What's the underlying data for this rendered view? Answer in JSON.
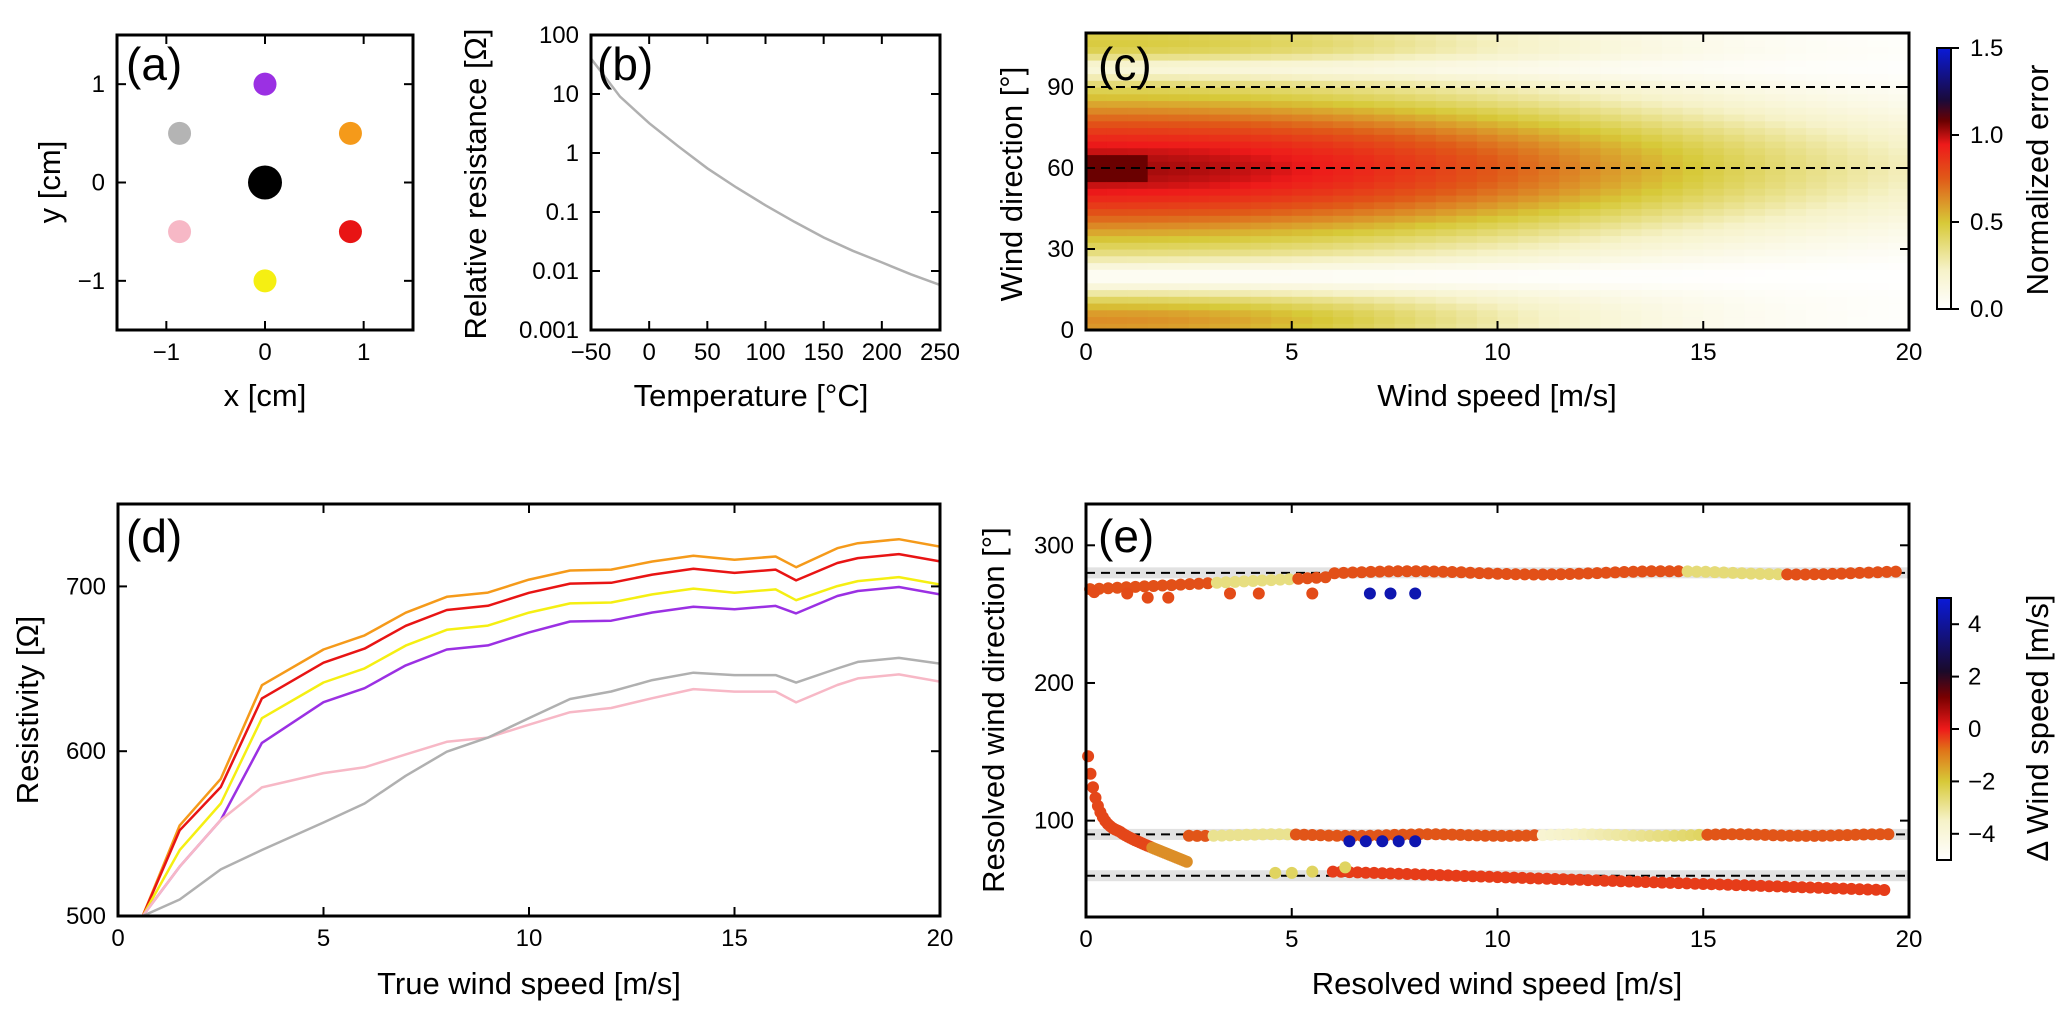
{
  "chart_data": [
    {
      "id": "a",
      "type": "scatter",
      "panel_label": "(a)",
      "xlabel": "x [cm]",
      "ylabel": "y [cm]",
      "xlim": [
        -1.5,
        1.5
      ],
      "ylim": [
        -1.5,
        1.5
      ],
      "xticks": [
        -1,
        0,
        1
      ],
      "yticks": [
        -1,
        0,
        1
      ],
      "points": [
        {
          "x": 0,
          "y": 1,
          "color": "#9b30e3",
          "size": "small"
        },
        {
          "x": -0.866,
          "y": 0.5,
          "color": "#b4b4b4",
          "size": "small"
        },
        {
          "x": 0.866,
          "y": 0.5,
          "color": "#f59a1a",
          "size": "small"
        },
        {
          "x": 0,
          "y": 0,
          "color": "#000000",
          "size": "large"
        },
        {
          "x": -0.866,
          "y": -0.5,
          "color": "#f7b8c6",
          "size": "small"
        },
        {
          "x": 0.866,
          "y": -0.5,
          "color": "#e81414",
          "size": "small"
        },
        {
          "x": 0,
          "y": -1,
          "color": "#f5ef12",
          "size": "small"
        }
      ]
    },
    {
      "id": "b",
      "type": "line",
      "panel_label": "(b)",
      "xlabel": "Temperature [°C]",
      "ylabel": "Relative resistance [Ω]",
      "xlim": [
        -50,
        250
      ],
      "ylim": [
        0.001,
        100
      ],
      "yscale": "log",
      "xticks": [
        -50,
        0,
        50,
        100,
        150,
        200,
        250
      ],
      "yticks": [
        0.001,
        0.01,
        0.1,
        1,
        10,
        100
      ],
      "ytick_labels": [
        "0.001",
        "0.01",
        "0.1",
        "1",
        "10",
        "100"
      ],
      "series": [
        {
          "name": "resistance",
          "color": "#b0b0b0",
          "x": [
            -50,
            -25,
            0,
            25,
            50,
            75,
            100,
            125,
            150,
            175,
            200,
            225,
            250
          ],
          "y": [
            40,
            9,
            3.2,
            1.3,
            0.55,
            0.26,
            0.13,
            0.068,
            0.037,
            0.022,
            0.014,
            0.0088,
            0.0058
          ]
        }
      ]
    },
    {
      "id": "c",
      "type": "heatmap",
      "panel_label": "(c)",
      "xlabel": "Wind speed [m/s]",
      "ylabel": "Wind direction [°]",
      "xlim": [
        0,
        20
      ],
      "ylim": [
        0,
        110
      ],
      "xticks": [
        0,
        5,
        10,
        15,
        20
      ],
      "yticks": [
        0,
        30,
        60,
        90
      ],
      "hlines": [
        60,
        90
      ],
      "colorbar": {
        "label": "Normalized error",
        "range": [
          0,
          1.5
        ],
        "ticks": [
          0.0,
          0.5,
          1.0,
          1.5
        ],
        "tick_labels": [
          "0.0",
          "0.5",
          "1.0",
          "1.5"
        ]
      },
      "description_values": {
        "max_error_direction": 60,
        "min_error_direction": 20,
        "error_decay_speed": 15
      }
    },
    {
      "id": "d",
      "type": "line",
      "panel_label": "(d)",
      "xlabel": "True wind speed [m/s]",
      "ylabel": "Resistivity [Ω]",
      "xlim": [
        0,
        20
      ],
      "ylim": [
        500,
        750
      ],
      "xticks": [
        0,
        5,
        10,
        15,
        20
      ],
      "yticks": [
        500,
        600,
        700
      ],
      "x": [
        0.6,
        1.5,
        2.5,
        3.5,
        5,
        6,
        7,
        8,
        9,
        10,
        11,
        12,
        13,
        14,
        15,
        16,
        16.5,
        17.5,
        18,
        19,
        20
      ],
      "series": [
        {
          "name": "orange",
          "color": "#f59a1a",
          "values": [
            500,
            555,
            585,
            640,
            660,
            672,
            684,
            692,
            698,
            704,
            708,
            712,
            715,
            717,
            718,
            718,
            710,
            725,
            726,
            727,
            726
          ]
        },
        {
          "name": "red",
          "color": "#e81414",
          "values": [
            500,
            552,
            580,
            632,
            652,
            664,
            676,
            684,
            690,
            696,
            700,
            704,
            707,
            709,
            710,
            710,
            702,
            716,
            717,
            718,
            717
          ]
        },
        {
          "name": "yellow",
          "color": "#f5ef12",
          "values": [
            500,
            540,
            570,
            620,
            640,
            652,
            664,
            672,
            678,
            684,
            688,
            692,
            695,
            697,
            698,
            698,
            690,
            702,
            703,
            704,
            703
          ]
        },
        {
          "name": "purple",
          "color": "#9b30e3",
          "values": [
            500,
            530,
            560,
            605,
            628,
            640,
            652,
            660,
            666,
            672,
            677,
            681,
            684,
            686,
            688,
            688,
            682,
            696,
            697,
            698,
            697
          ]
        },
        {
          "name": "pink",
          "color": "#f7b8c6",
          "values": [
            500,
            530,
            560,
            578,
            585,
            592,
            598,
            604,
            610,
            616,
            622,
            628,
            632,
            636,
            638,
            636,
            628,
            642,
            644,
            645,
            644
          ]
        },
        {
          "name": "grey",
          "color": "#b0b0b0",
          "values": [
            500,
            510,
            530,
            540,
            555,
            570,
            585,
            598,
            610,
            620,
            630,
            638,
            643,
            646,
            648,
            646,
            640,
            652,
            654,
            655,
            655
          ]
        }
      ]
    },
    {
      "id": "e",
      "type": "scatter",
      "panel_label": "(e)",
      "xlabel": "Resolved wind speed [m/s]",
      "ylabel": "Resolved wind direction [°]",
      "xlim": [
        0,
        20
      ],
      "ylim": [
        30,
        330
      ],
      "xticks": [
        0,
        5,
        10,
        15,
        20
      ],
      "yticks": [
        100,
        200,
        300
      ],
      "hlines": [
        60,
        90,
        280
      ],
      "colorbar": {
        "label": "Δ Wind speed [m/s]",
        "range": [
          -5,
          5
        ],
        "ticks": [
          -4,
          -2,
          0,
          2,
          4
        ],
        "tick_labels": [
          "−4",
          "−2",
          "0",
          "2",
          "4"
        ]
      },
      "clusters": [
        {
          "name": "upper-band",
          "direction_range": [
            265,
            285
          ],
          "speed_range": [
            0,
            20
          ]
        },
        {
          "name": "middle-band",
          "direction_range": [
            85,
            95
          ],
          "speed_range": [
            0,
            20
          ]
        },
        {
          "name": "lower-band",
          "direction_range": [
            48,
            65
          ],
          "speed_range": [
            1.5,
            19.5
          ]
        },
        {
          "name": "low-speed-tail",
          "direction_range": [
            80,
            160
          ],
          "speed_range": [
            0,
            1.5
          ]
        }
      ]
    }
  ]
}
